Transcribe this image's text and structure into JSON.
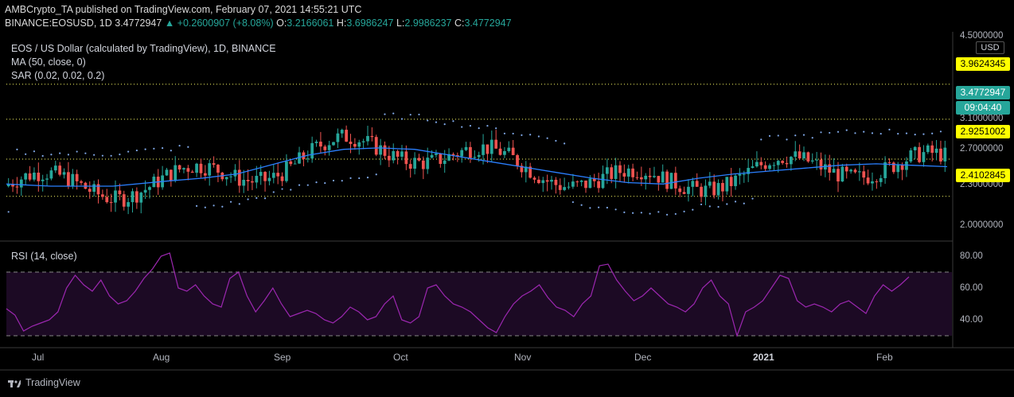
{
  "header": {
    "line1": "AMBCrypto_TA published on TradingView.com, February 07, 2021 14:55:21 UTC",
    "symbol": "BINANCE:EOSUSD, 1D",
    "last": "3.4772947",
    "change": "▲ +0.2600907 (+8.08%)",
    "o_label": "O:",
    "o": "3.2166061",
    "h_label": "H:",
    "h": "3.6986247",
    "l_label": "L:",
    "l": "2.9986237",
    "c_label": "C:",
    "c": "3.4772947"
  },
  "legend": {
    "title": "EOS / US Dollar (calculated by TradingView), 1D, BINANCE",
    "ma": "MA (50, close, 0)",
    "sar": "SAR (0.02, 0.02, 0.2)",
    "rsi": "RSI (14, close)"
  },
  "price_axis": {
    "currency": "USD",
    "ticks": [
      "4.5000000",
      "3.1000000",
      "2.7000000",
      "2.3000000",
      "2.0000000"
    ]
  },
  "rsi_axis": {
    "ticks": [
      "80.00",
      "60.00",
      "40.00"
    ]
  },
  "price_tags": {
    "resistance_high": "3.9624345",
    "current": "3.4772947",
    "countdown": "09:04:40",
    "support_mid": "2.9251002",
    "support_low": "2.4102845"
  },
  "time_axis": [
    "Jul",
    "Aug",
    "Sep",
    "Oct",
    "Nov",
    "Dec",
    "2021",
    "Jan",
    "Feb"
  ],
  "brand": "TradingView",
  "colors": {
    "up": "#26a69a",
    "down": "#ef5350",
    "ma": "#2a7fff",
    "sar": "#7fa7e6",
    "rsi": "#9c27b0",
    "hline": "#ffff66",
    "background": "#000000"
  },
  "chart_data": [
    {
      "type": "candlestick",
      "title": "EOS / US Dollar (calculated by TradingView), 1D, BINANCE",
      "x_range": [
        "2021-06-20",
        "2021-02-10"
      ],
      "ylim": [
        1.9,
        4.6
      ],
      "horizontal_levels": [
        3.9624345,
        3.4772947,
        2.9251002,
        2.4102845
      ],
      "series": [
        {
          "name": "MA (50, close, 0)",
          "points": [
            [
              0,
              2.58
            ],
            [
              5,
              2.55
            ],
            [
              12,
              2.55
            ],
            [
              18,
              2.62
            ],
            [
              22,
              2.66
            ],
            [
              26,
              2.72
            ],
            [
              30,
              2.85
            ],
            [
              34,
              2.98
            ],
            [
              38,
              3.06
            ],
            [
              42,
              3.08
            ],
            [
              46,
              3.06
            ],
            [
              50,
              2.98
            ],
            [
              54,
              2.9
            ],
            [
              58,
              2.82
            ],
            [
              62,
              2.74
            ],
            [
              66,
              2.66
            ],
            [
              70,
              2.6
            ],
            [
              74,
              2.58
            ],
            [
              78,
              2.66
            ],
            [
              82,
              2.72
            ],
            [
              86,
              2.76
            ],
            [
              90,
              2.8
            ],
            [
              94,
              2.84
            ],
            [
              98,
              2.86
            ],
            [
              102,
              2.84
            ],
            [
              106,
              2.82
            ]
          ]
        }
      ],
      "key_prices": {
        "open": 3.2166061,
        "high": 3.6986247,
        "low": 2.9986237,
        "close": 3.4772947
      }
    },
    {
      "type": "line",
      "title": "RSI (14, close)",
      "ylim": [
        27,
        86
      ],
      "bands": [
        70,
        30
      ],
      "series": [
        {
          "name": "RSI (14, close)",
          "values": [
            47,
            43,
            33,
            36,
            38,
            40,
            45,
            60,
            68,
            62,
            58,
            65,
            55,
            50,
            52,
            58,
            66,
            72,
            80,
            82,
            60,
            58,
            62,
            55,
            50,
            48,
            66,
            70,
            55,
            45,
            52,
            60,
            50,
            42,
            44,
            46,
            44,
            40,
            38,
            42,
            48,
            45,
            40,
            42,
            50,
            55,
            40,
            38,
            42,
            60,
            62,
            55,
            50,
            48,
            45,
            40,
            35,
            32,
            42,
            50,
            55,
            58,
            62,
            54,
            48,
            46,
            42,
            50,
            55,
            74,
            75,
            65,
            58,
            52,
            55,
            60,
            55,
            50,
            48,
            45,
            50,
            60,
            65,
            55,
            50,
            30,
            45,
            48,
            52,
            60,
            68,
            66,
            52,
            48,
            50,
            48,
            45,
            50,
            52,
            48,
            44,
            55,
            62,
            58,
            62,
            67
          ]
        }
      ]
    }
  ]
}
